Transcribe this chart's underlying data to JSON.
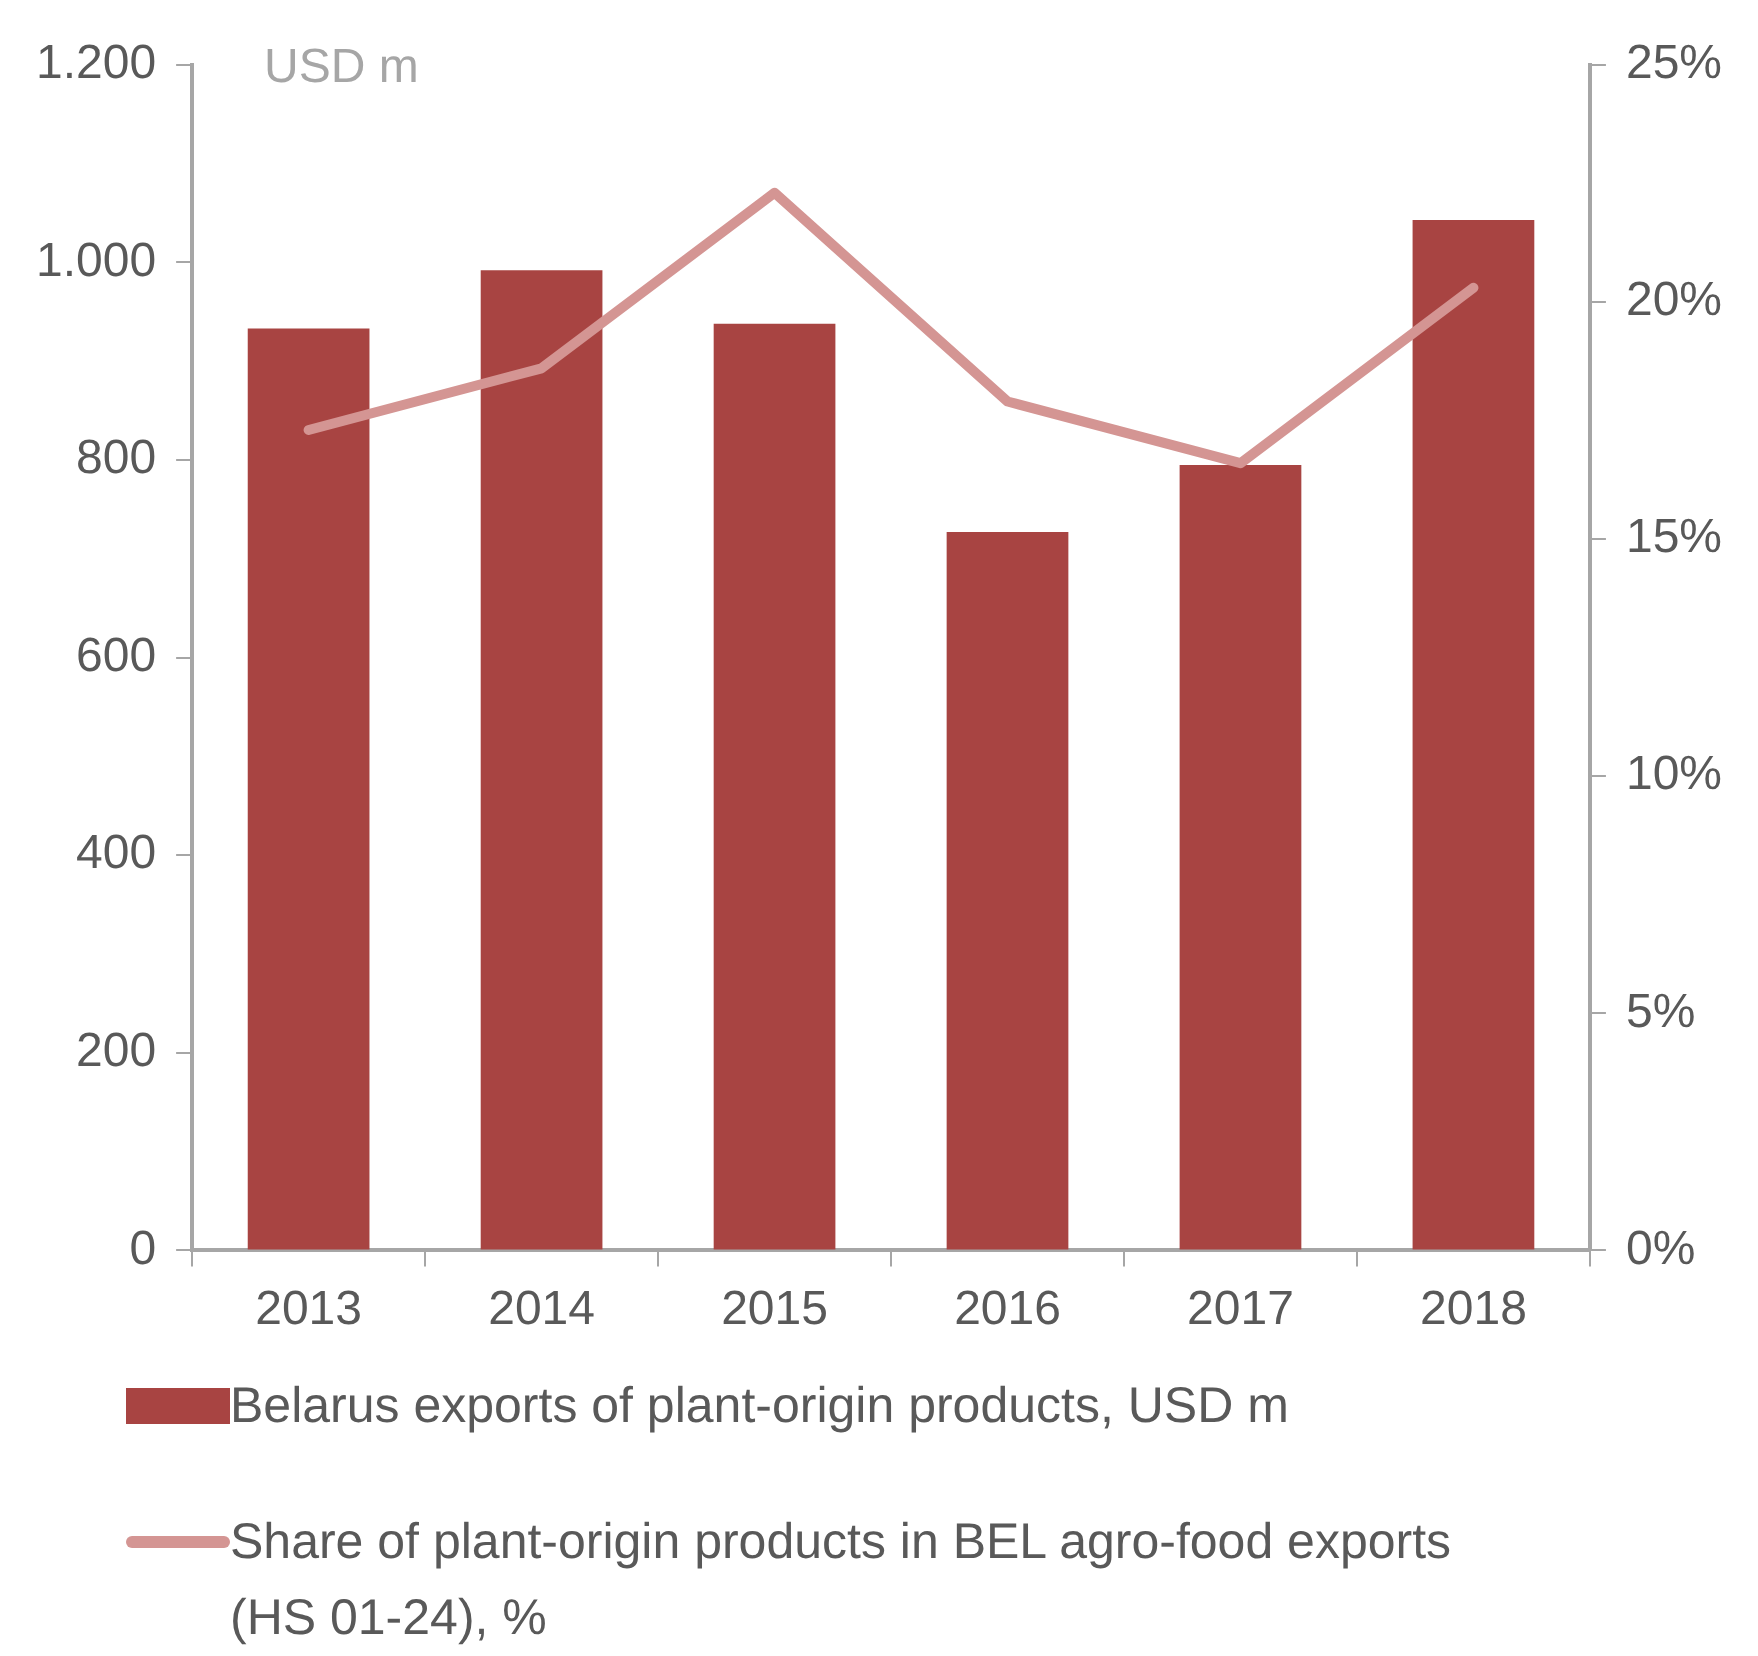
{
  "chart_data": {
    "type": "bar",
    "categories": [
      "2013",
      "2014",
      "2015",
      "2016",
      "2017",
      "2018"
    ],
    "series": [
      {
        "name": "Belarus exports of plant-origin products, USD m",
        "color": "#a84442",
        "values": [
          933,
          992,
          938,
          727,
          795,
          1043
        ]
      },
      {
        "name": "Share of plant-origin products in BEL agro-food exports (HS 01-24), %",
        "type": "line",
        "axis": "y2",
        "color": "#d49593",
        "values": [
          17.3,
          18.6,
          22.3,
          17.9,
          16.6,
          20.3
        ]
      }
    ],
    "ylim": [
      0,
      1200
    ],
    "yticks": [
      0,
      200,
      400,
      600,
      800,
      {
        "value": 1000,
        "label": "1.000"
      },
      {
        "value": 1200,
        "label": "1.200"
      }
    ],
    "y2lim": [
      0,
      25
    ],
    "y2ticks": [
      {
        "value": 0,
        "label": "0%"
      },
      {
        "value": 5,
        "label": "5%"
      },
      {
        "value": 10,
        "label": "10%"
      },
      {
        "value": 15,
        "label": "15%"
      },
      {
        "value": 20,
        "label": "20%"
      },
      {
        "value": 25,
        "label": "25%"
      }
    ],
    "annotations": [
      "USD m"
    ],
    "grid": false,
    "legend": "bottom",
    "marker": "none"
  }
}
